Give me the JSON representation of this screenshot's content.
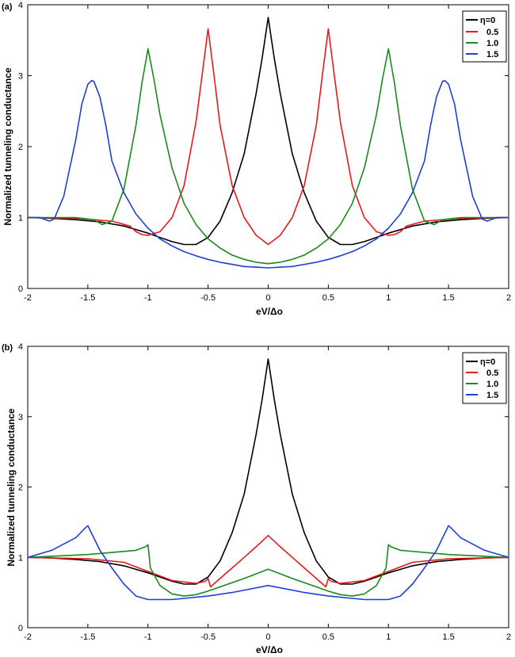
{
  "chart_data": [
    {
      "type": "line",
      "panel_label": "(a)",
      "xlabel": "eV/Δo",
      "ylabel": "Normalized tunneling conductance",
      "xlim": [
        -2,
        2
      ],
      "ylim": [
        0,
        4
      ],
      "xticks": [
        "-2",
        "-1.5",
        "-1",
        "-0.5",
        "0",
        "0.5",
        "1",
        "1.5",
        "2"
      ],
      "yticks": [
        "0",
        "1",
        "2",
        "3",
        "4"
      ],
      "grid": false,
      "legend_position": "top-right",
      "series": [
        {
          "name": "η=0",
          "color": "#000000",
          "x": [
            -2,
            -1.8,
            -1.6,
            -1.4,
            -1.2,
            -1.0,
            -0.9,
            -0.8,
            -0.7,
            -0.6,
            -0.5,
            -0.4,
            -0.3,
            -0.2,
            -0.1,
            -0.05,
            0,
            0.05,
            0.1,
            0.2,
            0.3,
            0.4,
            0.5,
            0.6,
            0.7,
            0.8,
            0.9,
            1.0,
            1.2,
            1.4,
            1.6,
            1.8,
            2
          ],
          "y": [
            1.0,
            0.99,
            0.97,
            0.94,
            0.88,
            0.78,
            0.72,
            0.66,
            0.62,
            0.62,
            0.72,
            0.95,
            1.35,
            1.9,
            2.75,
            3.25,
            3.82,
            3.25,
            2.75,
            1.9,
            1.35,
            0.95,
            0.72,
            0.62,
            0.62,
            0.66,
            0.72,
            0.78,
            0.88,
            0.94,
            0.97,
            0.99,
            1.0
          ]
        },
        {
          "name": "0.5",
          "color": "#e41a1c",
          "x": [
            -2,
            -1.6,
            -1.3,
            -1.15,
            -1.1,
            -1.05,
            -1.0,
            -0.9,
            -0.8,
            -0.7,
            -0.6,
            -0.55,
            -0.5,
            -0.45,
            -0.4,
            -0.3,
            -0.2,
            -0.1,
            0,
            0.1,
            0.2,
            0.3,
            0.4,
            0.45,
            0.5,
            0.55,
            0.6,
            0.7,
            0.8,
            0.9,
            1.0,
            1.05,
            1.1,
            1.15,
            1.3,
            1.6,
            2
          ],
          "y": [
            1.0,
            0.99,
            0.95,
            0.88,
            0.8,
            0.76,
            0.75,
            0.8,
            1.0,
            1.45,
            2.35,
            3.0,
            3.66,
            3.0,
            2.3,
            1.45,
            1.0,
            0.75,
            0.62,
            0.75,
            1.0,
            1.45,
            2.3,
            3.0,
            3.66,
            3.0,
            2.35,
            1.45,
            1.0,
            0.8,
            0.75,
            0.76,
            0.8,
            0.88,
            0.95,
            0.99,
            1.0
          ]
        },
        {
          "name": "1.0",
          "color": "#1a8a1a",
          "x": [
            -2,
            -1.6,
            -1.45,
            -1.38,
            -1.3,
            -1.2,
            -1.1,
            -1.05,
            -1.0,
            -0.95,
            -0.9,
            -0.8,
            -0.7,
            -0.6,
            -0.5,
            -0.4,
            -0.3,
            -0.2,
            -0.1,
            0,
            0.1,
            0.2,
            0.3,
            0.4,
            0.5,
            0.6,
            0.7,
            0.8,
            0.9,
            0.95,
            1.0,
            1.05,
            1.1,
            1.2,
            1.3,
            1.38,
            1.45,
            1.6,
            2
          ],
          "y": [
            1.0,
            1.0,
            0.97,
            0.9,
            0.95,
            1.4,
            2.3,
            2.9,
            3.38,
            2.95,
            2.45,
            1.7,
            1.2,
            0.9,
            0.7,
            0.57,
            0.47,
            0.41,
            0.37,
            0.35,
            0.37,
            0.41,
            0.47,
            0.57,
            0.7,
            0.9,
            1.2,
            1.7,
            2.45,
            2.95,
            3.38,
            2.9,
            2.3,
            1.4,
            0.95,
            0.9,
            0.97,
            1.0,
            1.0
          ]
        },
        {
          "name": "1.5",
          "color": "#1f3fd6",
          "x": [
            -2,
            -1.9,
            -1.82,
            -1.78,
            -1.7,
            -1.6,
            -1.55,
            -1.5,
            -1.47,
            -1.45,
            -1.4,
            -1.35,
            -1.3,
            -1.2,
            -1.1,
            -1.0,
            -0.9,
            -0.8,
            -0.7,
            -0.6,
            -0.5,
            -0.4,
            -0.3,
            -0.2,
            -0.1,
            0,
            0.1,
            0.2,
            0.3,
            0.4,
            0.5,
            0.6,
            0.7,
            0.8,
            0.9,
            1.0,
            1.1,
            1.2,
            1.3,
            1.35,
            1.4,
            1.45,
            1.47,
            1.5,
            1.55,
            1.6,
            1.7,
            1.78,
            1.82,
            1.9,
            2
          ],
          "y": [
            1.0,
            1.0,
            0.95,
            0.98,
            1.3,
            2.1,
            2.6,
            2.88,
            2.93,
            2.92,
            2.7,
            2.3,
            1.8,
            1.35,
            1.05,
            0.85,
            0.7,
            0.6,
            0.52,
            0.46,
            0.41,
            0.37,
            0.34,
            0.31,
            0.3,
            0.29,
            0.3,
            0.31,
            0.34,
            0.37,
            0.41,
            0.46,
            0.52,
            0.6,
            0.7,
            0.85,
            1.05,
            1.35,
            1.8,
            2.3,
            2.7,
            2.92,
            2.93,
            2.88,
            2.6,
            2.1,
            1.3,
            0.98,
            0.95,
            1.0,
            1.0
          ]
        }
      ]
    },
    {
      "type": "line",
      "panel_label": "(b)",
      "xlabel": "eV/Δo",
      "ylabel": "Normalized tunneling conductance",
      "xlim": [
        -2,
        2
      ],
      "ylim": [
        0,
        4
      ],
      "xticks": [
        "-2",
        "-1.5",
        "-1",
        "-0.5",
        "0",
        "0.5",
        "1",
        "1.5",
        "2"
      ],
      "yticks": [
        "0",
        "1",
        "2",
        "3",
        "4"
      ],
      "grid": false,
      "legend_position": "top-right",
      "series": [
        {
          "name": "η=0",
          "color": "#000000",
          "x": [
            -2,
            -1.8,
            -1.6,
            -1.4,
            -1.2,
            -1.0,
            -0.9,
            -0.8,
            -0.7,
            -0.6,
            -0.5,
            -0.4,
            -0.3,
            -0.2,
            -0.1,
            -0.05,
            0,
            0.05,
            0.1,
            0.2,
            0.3,
            0.4,
            0.5,
            0.6,
            0.7,
            0.8,
            0.9,
            1.0,
            1.2,
            1.4,
            1.6,
            1.8,
            2
          ],
          "y": [
            1.0,
            0.99,
            0.97,
            0.94,
            0.88,
            0.78,
            0.72,
            0.66,
            0.62,
            0.62,
            0.72,
            0.95,
            1.35,
            1.9,
            2.75,
            3.25,
            3.82,
            3.25,
            2.75,
            1.9,
            1.35,
            0.95,
            0.72,
            0.62,
            0.62,
            0.66,
            0.72,
            0.78,
            0.88,
            0.94,
            0.97,
            0.99,
            1.0
          ]
        },
        {
          "name": "0.5",
          "color": "#e41a1c",
          "x": [
            -2,
            -1.5,
            -1.2,
            -1.0,
            -0.8,
            -0.6,
            -0.52,
            -0.5,
            -0.48,
            -0.4,
            -0.3,
            -0.2,
            -0.1,
            0,
            0.1,
            0.2,
            0.3,
            0.4,
            0.48,
            0.5,
            0.52,
            0.6,
            0.8,
            1.0,
            1.2,
            1.5,
            2
          ],
          "y": [
            1.0,
            0.98,
            0.93,
            0.8,
            0.67,
            0.63,
            0.66,
            0.7,
            0.58,
            0.7,
            0.85,
            1.0,
            1.15,
            1.31,
            1.15,
            1.0,
            0.85,
            0.7,
            0.58,
            0.7,
            0.66,
            0.63,
            0.67,
            0.8,
            0.93,
            0.98,
            1.0
          ]
        },
        {
          "name": "1.0",
          "color": "#1a8a1a",
          "x": [
            -2,
            -1.5,
            -1.1,
            -1.02,
            -1.0,
            -0.98,
            -0.9,
            -0.8,
            -0.7,
            -0.6,
            -0.5,
            -0.4,
            -0.2,
            0,
            0.2,
            0.4,
            0.5,
            0.6,
            0.7,
            0.8,
            0.9,
            0.98,
            1.0,
            1.02,
            1.1,
            1.5,
            2
          ],
          "y": [
            1.0,
            1.04,
            1.1,
            1.15,
            1.18,
            0.85,
            0.6,
            0.48,
            0.45,
            0.47,
            0.52,
            0.58,
            0.7,
            0.83,
            0.7,
            0.58,
            0.52,
            0.47,
            0.45,
            0.48,
            0.6,
            0.85,
            1.18,
            1.15,
            1.1,
            1.04,
            1.0
          ]
        },
        {
          "name": "1.5",
          "color": "#1f3fd6",
          "x": [
            -2,
            -1.8,
            -1.6,
            -1.52,
            -1.5,
            -1.48,
            -1.4,
            -1.3,
            -1.2,
            -1.1,
            -1.0,
            -0.8,
            -0.5,
            -0.3,
            0,
            0.3,
            0.5,
            0.8,
            1.0,
            1.1,
            1.2,
            1.3,
            1.4,
            1.48,
            1.5,
            1.52,
            1.6,
            1.8,
            2
          ],
          "y": [
            1.0,
            1.1,
            1.28,
            1.42,
            1.45,
            1.38,
            1.1,
            0.85,
            0.62,
            0.45,
            0.4,
            0.4,
            0.45,
            0.5,
            0.6,
            0.5,
            0.45,
            0.4,
            0.4,
            0.45,
            0.62,
            0.85,
            1.1,
            1.38,
            1.45,
            1.42,
            1.28,
            1.1,
            1.0
          ]
        }
      ]
    }
  ]
}
